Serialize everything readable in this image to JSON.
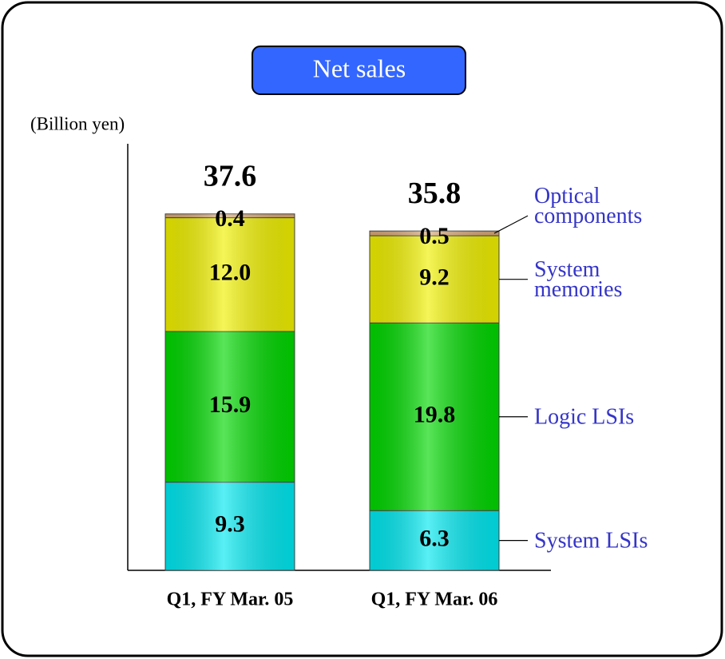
{
  "chart_data": {
    "type": "stacked_bar",
    "title": "Net sales",
    "y_label": "(Billion yen)",
    "categories": [
      "Q1, FY Mar. 05",
      "Q1, FY Mar. 06"
    ],
    "series": [
      {
        "name": "System LSIs",
        "color": "#00e8f0",
        "values": [
          9.3,
          6.3
        ]
      },
      {
        "name": "Logic LSIs",
        "color": "#00d800",
        "values": [
          15.9,
          19.8
        ]
      },
      {
        "name": "System memories",
        "color": "#f0f000",
        "values": [
          12.0,
          9.2
        ],
        "value_labels": [
          "12.0",
          "9.2"
        ]
      },
      {
        "name": "Optical components",
        "color": "#d8a878",
        "values": [
          0.4,
          0.5
        ]
      }
    ],
    "totals": [
      37.6,
      35.8
    ],
    "ylim": [
      0,
      45
    ]
  }
}
